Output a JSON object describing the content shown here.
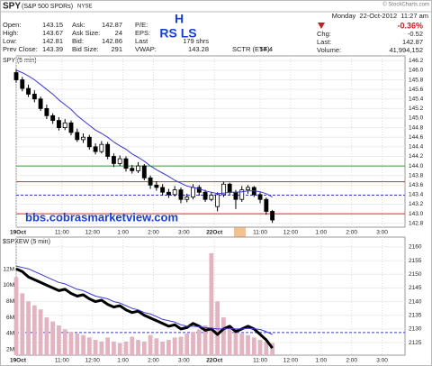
{
  "header": {
    "symbol": "SPY",
    "name": "(S&P 500 SPDRs)",
    "exchange": "NYSE",
    "watermark": "© StockCharts.com",
    "datetime": "Monday  22-Oct-2012  11:27 am",
    "quote_columns": [
      [
        {
          "label": "Open:",
          "value": 143.15
        },
        {
          "label": "High:",
          "value": 143.67
        },
        {
          "label": "Low:",
          "value": 142.81
        },
        {
          "label": "Prev Close:",
          "value": 143.39
        }
      ],
      [
        {
          "label": "Ask:",
          "value": 142.87
        },
        {
          "label": "Ask Size:",
          "value": 24
        },
        {
          "label": "Bid:",
          "value": 142.86
        },
        {
          "label": "Bid Size:",
          "value": 291
        }
      ],
      [
        {
          "label": "P/E:"
        },
        {
          "label": "EPS:"
        },
        {
          "label": "Last",
          "value": "179 shrs"
        },
        {
          "label": "VWAP:",
          "value": 143.28
        }
      ]
    ],
    "sctr": {
      "label": "SCTR (ETF):",
      "value": 54.4
    },
    "change_pct": "-0.36%",
    "summary": [
      {
        "label": "Chg:",
        "value": -0.52
      },
      {
        "label": "Last:",
        "value": 142.87
      },
      {
        "label": "Volume:",
        "value": "41,994,152"
      }
    ]
  },
  "annotations": {
    "top": "H",
    "shoulders": "RS LS",
    "url": "bbs.cobrasmarketview.com"
  },
  "chart_data": [
    {
      "type": "candlestick",
      "title": "SPY (5 min)",
      "x": [
        0,
        0.2,
        0.4,
        0.6,
        0.8,
        1.0,
        1.2,
        1.4,
        1.6,
        1.8,
        2.0,
        2.2,
        2.4,
        2.6,
        2.8,
        3.0,
        3.2,
        3.4,
        3.6,
        3.8,
        4.0,
        4.2,
        4.4,
        4.6,
        4.8,
        5.0,
        5.2,
        5.4,
        5.6,
        5.8,
        6.0,
        6.2,
        6.4,
        6.6,
        6.8,
        7.0,
        7.2,
        7.4,
        7.6,
        7.8,
        8.0,
        8.2,
        8.4
      ],
      "open": [
        145.95,
        145.8,
        145.62,
        145.5,
        145.4,
        145.2,
        145.05,
        144.95,
        144.8,
        144.9,
        144.7,
        144.55,
        144.6,
        144.4,
        144.3,
        144.45,
        144.2,
        144.05,
        144.15,
        143.95,
        143.9,
        144.0,
        143.75,
        143.6,
        143.55,
        143.45,
        143.4,
        143.5,
        143.3,
        143.35,
        143.55,
        143.45,
        143.3,
        143.15,
        143.4,
        143.62,
        143.45,
        143.3,
        143.5,
        143.55,
        143.4,
        143.3,
        143.05
      ],
      "high": [
        146.02,
        145.86,
        145.7,
        145.58,
        145.45,
        145.28,
        145.1,
        145.02,
        144.98,
        144.95,
        144.78,
        144.68,
        144.65,
        144.47,
        144.52,
        144.5,
        144.26,
        144.22,
        144.2,
        144.02,
        144.08,
        144.04,
        143.8,
        143.68,
        143.62,
        143.52,
        143.58,
        143.55,
        143.42,
        143.62,
        143.6,
        143.5,
        143.46,
        143.45,
        143.67,
        143.65,
        143.5,
        143.58,
        143.6,
        143.58,
        143.45,
        143.34,
        143.08
      ],
      "low": [
        145.74,
        145.56,
        145.44,
        145.33,
        145.15,
        144.98,
        144.88,
        144.74,
        144.75,
        144.64,
        144.5,
        144.48,
        144.34,
        144.24,
        144.26,
        144.14,
        143.98,
        144.0,
        143.88,
        143.84,
        143.85,
        143.7,
        143.52,
        143.48,
        143.38,
        143.33,
        143.36,
        143.22,
        143.24,
        143.3,
        143.38,
        143.25,
        143.26,
        143.05,
        143.35,
        143.4,
        143.1,
        143.25,
        143.42,
        143.35,
        143.22,
        142.98,
        142.81
      ],
      "close": [
        145.8,
        145.62,
        145.5,
        145.4,
        145.2,
        145.05,
        144.95,
        144.8,
        144.9,
        144.7,
        144.55,
        144.6,
        144.4,
        144.3,
        144.45,
        144.2,
        144.05,
        144.15,
        143.95,
        143.9,
        144.0,
        143.75,
        143.6,
        143.55,
        143.45,
        143.4,
        143.5,
        143.3,
        143.35,
        143.55,
        143.45,
        143.3,
        143.39,
        143.4,
        143.62,
        143.45,
        143.3,
        143.5,
        143.55,
        143.4,
        143.3,
        143.05,
        142.87
      ],
      "colors": {
        "up": "#ffffff",
        "down": "#000000",
        "wick": "#000000"
      },
      "overlays": [
        {
          "color": "#3a3acc",
          "values": [
            146.0,
            145.95,
            145.88,
            145.8,
            145.7,
            145.6,
            145.5,
            145.38,
            145.28,
            145.18,
            145.05,
            144.95,
            144.85,
            144.75,
            144.68,
            144.6,
            144.5,
            144.42,
            144.35,
            144.25,
            144.18,
            144.1,
            144.0,
            143.92,
            143.85,
            143.78,
            143.7,
            143.64,
            143.58,
            143.55,
            143.52,
            143.48,
            143.45,
            143.42,
            143.43,
            143.45,
            143.45,
            143.46,
            143.48,
            143.48,
            143.46,
            143.42,
            143.35
          ]
        }
      ],
      "hlines": [
        {
          "value": 144.0,
          "color": "#3a9a3a"
        },
        {
          "value": 143.67,
          "color": "#d03030"
        },
        {
          "value": 143.39,
          "color": "#3a3acc",
          "dashed": true
        },
        {
          "value": 143.0,
          "color": "#d03030"
        }
      ],
      "xlim": [
        0,
        12.75
      ],
      "xticks": [
        {
          "value": 0,
          "label": "19Oct"
        },
        {
          "value": 1.5,
          "label": "11:00"
        },
        {
          "value": 2.5,
          "label": "12:00"
        },
        {
          "value": 3.5,
          "label": "1:00"
        },
        {
          "value": 4.5,
          "label": "2:00"
        },
        {
          "value": 5.5,
          "label": "3:00"
        },
        {
          "value": 6.5,
          "label": "22Oct"
        },
        {
          "value": 8,
          "label": "11:00"
        },
        {
          "value": 9,
          "label": "12:00"
        },
        {
          "value": 10,
          "label": "1:00"
        },
        {
          "value": 11,
          "label": "2:00"
        },
        {
          "value": 12,
          "label": "3:00"
        }
      ],
      "ylim": [
        142.72,
        146.3
      ],
      "yticks": [
        142.8,
        {
          "value": 143.0,
          "label": "143.0"
        },
        143.2,
        143.4,
        143.6,
        143.8,
        {
          "value": 144.0,
          "label": "144.0"
        },
        144.2,
        144.4,
        144.6,
        144.8,
        {
          "value": 145.0,
          "label": "145.0"
        },
        145.2,
        145.4,
        145.6,
        145.8,
        {
          "value": 146.0,
          "label": "146.0"
        },
        146.2
      ],
      "grid": true
    },
    {
      "type": "combo",
      "title": "$SPXEW (5 min)",
      "x": [
        0,
        0.2,
        0.4,
        0.6,
        0.8,
        1.0,
        1.2,
        1.4,
        1.6,
        1.8,
        2.0,
        2.2,
        2.4,
        2.6,
        2.8,
        3.0,
        3.2,
        3.4,
        3.6,
        3.8,
        4.0,
        4.2,
        4.4,
        4.6,
        4.8,
        5.0,
        5.2,
        5.4,
        5.6,
        5.8,
        6.0,
        6.2,
        6.4,
        6.6,
        6.8,
        7.0,
        7.2,
        7.4,
        7.6,
        7.8,
        8.0,
        8.2,
        8.4
      ],
      "series": [
        {
          "type": "bar",
          "axis": "y2",
          "color": "#e2b3c0",
          "values": [
            11000000,
            9000000,
            8000000,
            7500000,
            7000000,
            6000000,
            5500000,
            5000000,
            4500000,
            4200000,
            4000000,
            3800000,
            3500000,
            3200000,
            3000000,
            3500000,
            3000000,
            2800000,
            3000000,
            3600000,
            3200000,
            3000000,
            3800000,
            3400000,
            3000000,
            3200000,
            3500000,
            3600000,
            4000000,
            4200000,
            4500000,
            5000000,
            14000000,
            8000000,
            6000000,
            5000000,
            4500000,
            4000000,
            3800000,
            3500000,
            3200000,
            3000000,
            2800000
          ]
        },
        {
          "type": "line",
          "color": "#000000",
          "width": 3,
          "values": [
            2152,
            2151,
            2149,
            2148,
            2147,
            2146,
            2145,
            2144,
            2144.5,
            2143,
            2142,
            2142.5,
            2141,
            2140,
            2140.5,
            2139,
            2138,
            2138.5,
            2137,
            2136,
            2136.5,
            2135,
            2134,
            2133,
            2132,
            2131,
            2131.5,
            2130,
            2130.5,
            2132,
            2131,
            2129.5,
            2130,
            2128,
            2130,
            2131,
            2129,
            2130,
            2131,
            2130,
            2128,
            2126,
            2123
          ]
        },
        {
          "type": "line",
          "color": "#3a3acc",
          "width": 1,
          "values": [
            2153,
            2152.5,
            2152,
            2151,
            2150,
            2149,
            2148,
            2147,
            2146.5,
            2145.5,
            2144.5,
            2144,
            2143,
            2142,
            2141.5,
            2141,
            2140,
            2139.5,
            2138.5,
            2137.5,
            2137,
            2136,
            2135.5,
            2134.5,
            2133.5,
            2133,
            2132.5,
            2131.5,
            2131,
            2131,
            2130.8,
            2130.5,
            2130.3,
            2130,
            2130,
            2130.2,
            2130,
            2130,
            2130.2,
            2130.1,
            2129.8,
            2129,
            2128
          ]
        }
      ],
      "hlines": [
        {
          "value": 2128.7,
          "color": "#3a3acc",
          "dashed": true
        }
      ],
      "xlim": [
        0,
        12.75
      ],
      "xticks": [
        {
          "value": 0,
          "label": "19Oct"
        },
        {
          "value": 1.5,
          "label": "11:00"
        },
        {
          "value": 2.5,
          "label": "12:00"
        },
        {
          "value": 3.5,
          "label": "1:00"
        },
        {
          "value": 4.5,
          "label": "2:00"
        },
        {
          "value": 5.5,
          "label": "3:00"
        },
        {
          "value": 6.5,
          "label": "22Oct"
        },
        {
          "value": 8,
          "label": "11:00"
        },
        {
          "value": 9,
          "label": "12:00"
        },
        {
          "value": 10,
          "label": "1:00"
        },
        {
          "value": 11,
          "label": "2:00"
        },
        {
          "value": 12,
          "label": "3:00"
        }
      ],
      "ylim": [
        2120.4,
        2163.6
      ],
      "yticks": [
        2125,
        2130,
        2135,
        2140,
        2145,
        2150,
        2155,
        2160
      ],
      "y2lim": [
        1300000,
        16000000
      ],
      "y2ticks": [
        {
          "value": 2000000,
          "label": "2M"
        },
        {
          "value": 4000000,
          "label": "4M"
        },
        {
          "value": 6000000,
          "label": "6M"
        },
        {
          "value": 8000000,
          "label": "8M"
        },
        {
          "value": 10000000,
          "label": "10M"
        },
        {
          "value": 12000000,
          "label": "12M"
        }
      ],
      "grid": true
    }
  ]
}
